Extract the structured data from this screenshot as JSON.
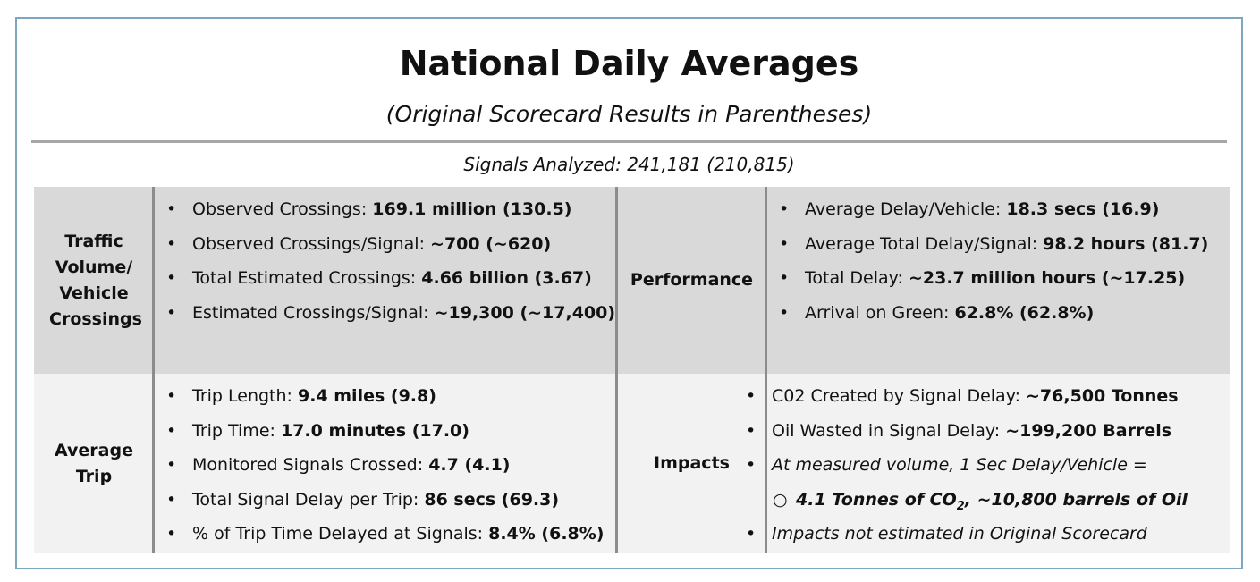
{
  "title": "National Daily Averages",
  "subtitle": "(Original Scorecard Results in Parentheses)",
  "signals_analyzed": "Signals Analyzed: 241,181 (210,815)",
  "sections": {
    "traffic": {
      "label": "Traffic Volume/ Vehicle Crossings",
      "items": [
        {
          "label": "Observed Crossings: ",
          "value": "169.1 million (130.5)"
        },
        {
          "label": "Observed Crossings/Signal: ",
          "value": "~700 (~620)"
        },
        {
          "label": "Total Estimated Crossings: ",
          "value": "4.66 billion (3.67)"
        },
        {
          "label": "Estimated Crossings/Signal: ",
          "value": "~19,300 (~17,400)"
        }
      ]
    },
    "performance": {
      "label": "Performance",
      "items": [
        {
          "label": "Average Delay/Vehicle: ",
          "value": "18.3 secs (16.9)"
        },
        {
          "label": "Average Total Delay/Signal: ",
          "value": "98.2 hours (81.7)"
        },
        {
          "label": "Total Delay: ",
          "value": "~23.7 million hours (~17.25)"
        },
        {
          "label": "Arrival on Green: ",
          "value": "62.8% (62.8%)"
        }
      ]
    },
    "trip": {
      "label": "Average Trip",
      "items": [
        {
          "label": "Trip Length: ",
          "value": "9.4 miles (9.8)"
        },
        {
          "label": "Trip Time: ",
          "value": "17.0 minutes (17.0)"
        },
        {
          "label": "Monitored Signals Crossed: ",
          "value": "4.7 (4.1)"
        },
        {
          "label": "Total Signal Delay per Trip: ",
          "value": "86 secs (69.3)"
        },
        {
          "label": "% of Trip Time Delayed at Signals: ",
          "value": "8.4% (6.8%)"
        }
      ]
    },
    "impacts": {
      "label": "Impacts",
      "items": [
        {
          "label": "C02 Created by Signal Delay: ",
          "value": "~76,500 Tonnes"
        },
        {
          "label": "Oil Wasted in Signal Delay: ",
          "value": "~199,200 Barrels"
        },
        {
          "text": "At measured volume, 1 Sec Delay/Vehicle ="
        },
        {
          "sub_a": "4.1 Tonnes of CO",
          "sub_sub": "2",
          "sub_b": ", ~10,800 barrels of Oil"
        },
        {
          "text": "Impacts not estimated in Original Scorecard"
        }
      ]
    }
  },
  "bullet": "•",
  "sub_bullet": "○"
}
